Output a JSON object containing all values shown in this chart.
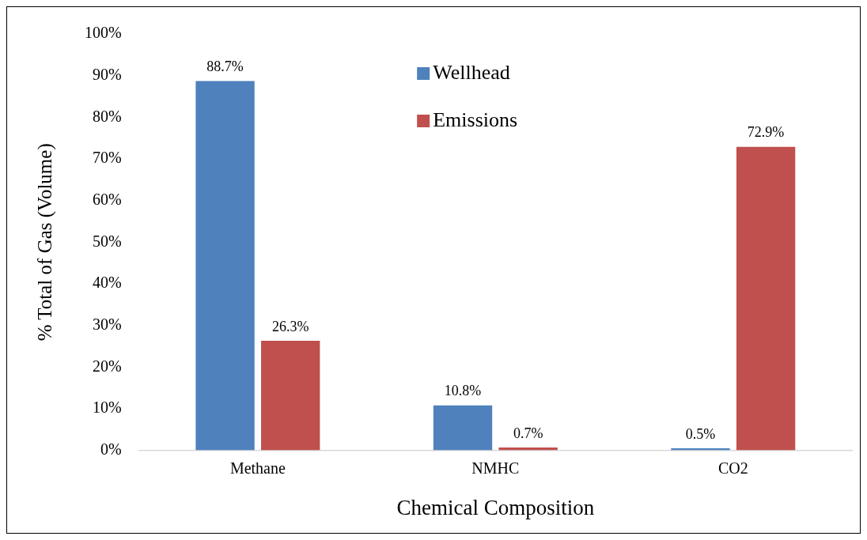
{
  "chart_data": {
    "type": "bar",
    "xlabel": "Chemical Composition",
    "ylabel": "% Total of Gas (Volume)",
    "categories": [
      "Methane",
      "NMHC",
      "CO2"
    ],
    "series": [
      {
        "name": "Wellhead",
        "color": "#4f81bd",
        "values": [
          88.7,
          10.8,
          0.5
        ],
        "value_labels": [
          "88.7%",
          "10.8%",
          "0.5%"
        ]
      },
      {
        "name": "Emissions",
        "color": "#c0504d",
        "values": [
          26.3,
          0.7,
          72.9
        ],
        "value_labels": [
          "26.3%",
          "0.7%",
          "72.9%"
        ]
      }
    ],
    "ylim": [
      0,
      100
    ],
    "yticks": [
      {
        "value": 0,
        "label": "0%"
      },
      {
        "value": 10,
        "label": "10%"
      },
      {
        "value": 20,
        "label": "20%"
      },
      {
        "value": 30,
        "label": "30%"
      },
      {
        "value": 40,
        "label": "40%"
      },
      {
        "value": 50,
        "label": "50%"
      },
      {
        "value": 60,
        "label": "60%"
      },
      {
        "value": 70,
        "label": "70%"
      },
      {
        "value": 80,
        "label": "80%"
      },
      {
        "value": 90,
        "label": "90%"
      },
      {
        "value": 100,
        "label": "100%"
      }
    ],
    "grid": false,
    "legend": "top"
  }
}
